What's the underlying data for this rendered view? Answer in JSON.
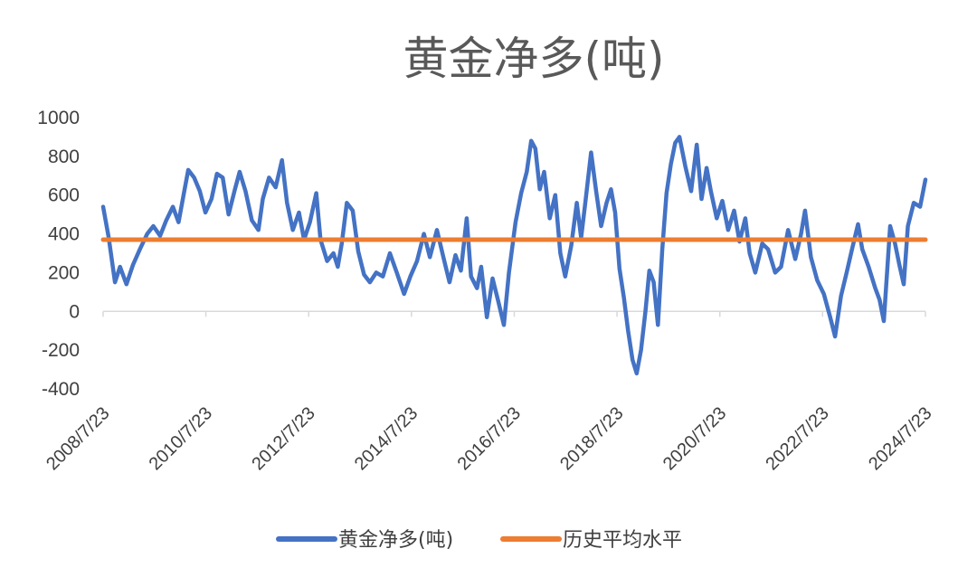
{
  "chart_data": {
    "type": "line",
    "title": "黄金净多(吨)",
    "xlabel": "",
    "ylabel": "",
    "ylim": [
      -400,
      1000
    ],
    "y_ticks": [
      "1000",
      "800",
      "600",
      "400",
      "200",
      "0",
      "-200",
      "-400"
    ],
    "x_range": [
      "2008/7/23",
      "2024/7/23"
    ],
    "x_ticks": [
      "2008/7/23",
      "2010/7/23",
      "2012/7/23",
      "2014/7/23",
      "2016/7/23",
      "2018/7/23",
      "2020/7/23",
      "2022/7/23",
      "2024/7/23"
    ],
    "grid": false,
    "legend_position": "bottom",
    "series": [
      {
        "name": "黄金净多(吨)",
        "color": "#4472C4",
        "points": [
          [
            "2008-07-23",
            540
          ],
          [
            "2008-09-01",
            380
          ],
          [
            "2008-10-15",
            150
          ],
          [
            "2008-11-20",
            230
          ],
          [
            "2009-01-05",
            140
          ],
          [
            "2009-02-20",
            240
          ],
          [
            "2009-04-10",
            320
          ],
          [
            "2009-06-01",
            400
          ],
          [
            "2009-07-15",
            440
          ],
          [
            "2009-09-01",
            390
          ],
          [
            "2009-10-15",
            470
          ],
          [
            "2009-12-01",
            540
          ],
          [
            "2010-01-10",
            460
          ],
          [
            "2010-02-20",
            620
          ],
          [
            "2010-03-20",
            730
          ],
          [
            "2010-05-01",
            690
          ],
          [
            "2010-06-10",
            620
          ],
          [
            "2010-07-20",
            510
          ],
          [
            "2010-09-01",
            580
          ],
          [
            "2010-10-10",
            710
          ],
          [
            "2010-11-20",
            690
          ],
          [
            "2011-01-01",
            500
          ],
          [
            "2011-02-15",
            630
          ],
          [
            "2011-03-20",
            720
          ],
          [
            "2011-05-01",
            620
          ],
          [
            "2011-06-15",
            470
          ],
          [
            "2011-08-01",
            420
          ],
          [
            "2011-09-01",
            580
          ],
          [
            "2011-10-15",
            690
          ],
          [
            "2011-12-01",
            640
          ],
          [
            "2012-01-15",
            780
          ],
          [
            "2012-02-20",
            560
          ],
          [
            "2012-04-01",
            420
          ],
          [
            "2012-05-15",
            510
          ],
          [
            "2012-06-20",
            370
          ],
          [
            "2012-08-01",
            460
          ],
          [
            "2012-09-15",
            610
          ],
          [
            "2012-10-15",
            370
          ],
          [
            "2012-12-01",
            260
          ],
          [
            "2013-01-15",
            300
          ],
          [
            "2013-02-15",
            230
          ],
          [
            "2013-03-15",
            350
          ],
          [
            "2013-04-20",
            560
          ],
          [
            "2013-06-01",
            520
          ],
          [
            "2013-07-10",
            310
          ],
          [
            "2013-08-20",
            190
          ],
          [
            "2013-10-01",
            150
          ],
          [
            "2013-11-15",
            200
          ],
          [
            "2014-01-01",
            180
          ],
          [
            "2014-02-20",
            300
          ],
          [
            "2014-04-10",
            200
          ],
          [
            "2014-06-01",
            90
          ],
          [
            "2014-07-15",
            180
          ],
          [
            "2014-09-01",
            260
          ],
          [
            "2014-10-20",
            400
          ],
          [
            "2014-12-01",
            280
          ],
          [
            "2015-01-20",
            420
          ],
          [
            "2015-03-10",
            270
          ],
          [
            "2015-04-20",
            150
          ],
          [
            "2015-06-01",
            290
          ],
          [
            "2015-07-10",
            210
          ],
          [
            "2015-08-20",
            480
          ],
          [
            "2015-09-20",
            180
          ],
          [
            "2015-11-01",
            120
          ],
          [
            "2015-12-01",
            230
          ],
          [
            "2016-01-10",
            -30
          ],
          [
            "2016-02-20",
            170
          ],
          [
            "2016-04-01",
            50
          ],
          [
            "2016-05-10",
            -70
          ],
          [
            "2016-06-15",
            200
          ],
          [
            "2016-08-01",
            460
          ],
          [
            "2016-09-10",
            610
          ],
          [
            "2016-10-20",
            720
          ],
          [
            "2016-11-20",
            880
          ],
          [
            "2016-12-20",
            840
          ],
          [
            "2017-01-20",
            630
          ],
          [
            "2017-02-20",
            720
          ],
          [
            "2017-04-01",
            480
          ],
          [
            "2017-05-10",
            600
          ],
          [
            "2017-06-15",
            300
          ],
          [
            "2017-07-20",
            180
          ],
          [
            "2017-09-01",
            340
          ],
          [
            "2017-10-10",
            560
          ],
          [
            "2017-11-10",
            380
          ],
          [
            "2017-12-10",
            560
          ],
          [
            "2018-01-20",
            820
          ],
          [
            "2018-02-25",
            620
          ],
          [
            "2018-04-01",
            440
          ],
          [
            "2018-05-10",
            560
          ],
          [
            "2018-06-10",
            630
          ],
          [
            "2018-07-10",
            510
          ],
          [
            "2018-08-10",
            220
          ],
          [
            "2018-09-10",
            70
          ],
          [
            "2018-10-10",
            -100
          ],
          [
            "2018-11-10",
            -250
          ],
          [
            "2018-12-10",
            -320
          ],
          [
            "2019-01-10",
            -200
          ],
          [
            "2019-02-10",
            0
          ],
          [
            "2019-03-10",
            210
          ],
          [
            "2019-04-10",
            150
          ],
          [
            "2019-05-10",
            -70
          ],
          [
            "2019-06-10",
            320
          ],
          [
            "2019-07-10",
            610
          ],
          [
            "2019-08-10",
            760
          ],
          [
            "2019-09-10",
            870
          ],
          [
            "2019-10-10",
            900
          ],
          [
            "2019-11-20",
            750
          ],
          [
            "2020-01-01",
            620
          ],
          [
            "2020-02-10",
            860
          ],
          [
            "2020-03-15",
            580
          ],
          [
            "2020-04-20",
            740
          ],
          [
            "2020-05-20",
            620
          ],
          [
            "2020-07-01",
            480
          ],
          [
            "2020-08-10",
            570
          ],
          [
            "2020-09-20",
            420
          ],
          [
            "2020-11-01",
            520
          ],
          [
            "2020-12-10",
            360
          ],
          [
            "2021-01-20",
            480
          ],
          [
            "2021-02-20",
            300
          ],
          [
            "2021-04-01",
            200
          ],
          [
            "2021-05-20",
            350
          ],
          [
            "2021-07-01",
            320
          ],
          [
            "2021-08-20",
            200
          ],
          [
            "2021-10-01",
            230
          ],
          [
            "2021-11-20",
            420
          ],
          [
            "2022-01-10",
            270
          ],
          [
            "2022-02-20",
            400
          ],
          [
            "2022-03-20",
            520
          ],
          [
            "2022-05-01",
            280
          ],
          [
            "2022-06-15",
            160
          ],
          [
            "2022-08-01",
            90
          ],
          [
            "2022-09-15",
            -30
          ],
          [
            "2022-10-20",
            -130
          ],
          [
            "2022-12-01",
            80
          ],
          [
            "2023-01-10",
            200
          ],
          [
            "2023-02-20",
            330
          ],
          [
            "2023-04-01",
            450
          ],
          [
            "2023-05-01",
            320
          ],
          [
            "2023-06-15",
            230
          ],
          [
            "2023-08-01",
            120
          ],
          [
            "2023-09-01",
            60
          ],
          [
            "2023-10-01",
            -50
          ],
          [
            "2023-11-15",
            440
          ],
          [
            "2023-12-20",
            350
          ],
          [
            "2024-01-20",
            240
          ],
          [
            "2024-02-20",
            140
          ],
          [
            "2024-03-20",
            440
          ],
          [
            "2024-05-01",
            560
          ],
          [
            "2024-06-15",
            540
          ],
          [
            "2024-07-23",
            680
          ]
        ]
      },
      {
        "name": "历史平均水平",
        "color": "#ED7D31",
        "points": [
          [
            "2008-07-23",
            370
          ],
          [
            "2024-07-23",
            370
          ]
        ]
      }
    ]
  }
}
